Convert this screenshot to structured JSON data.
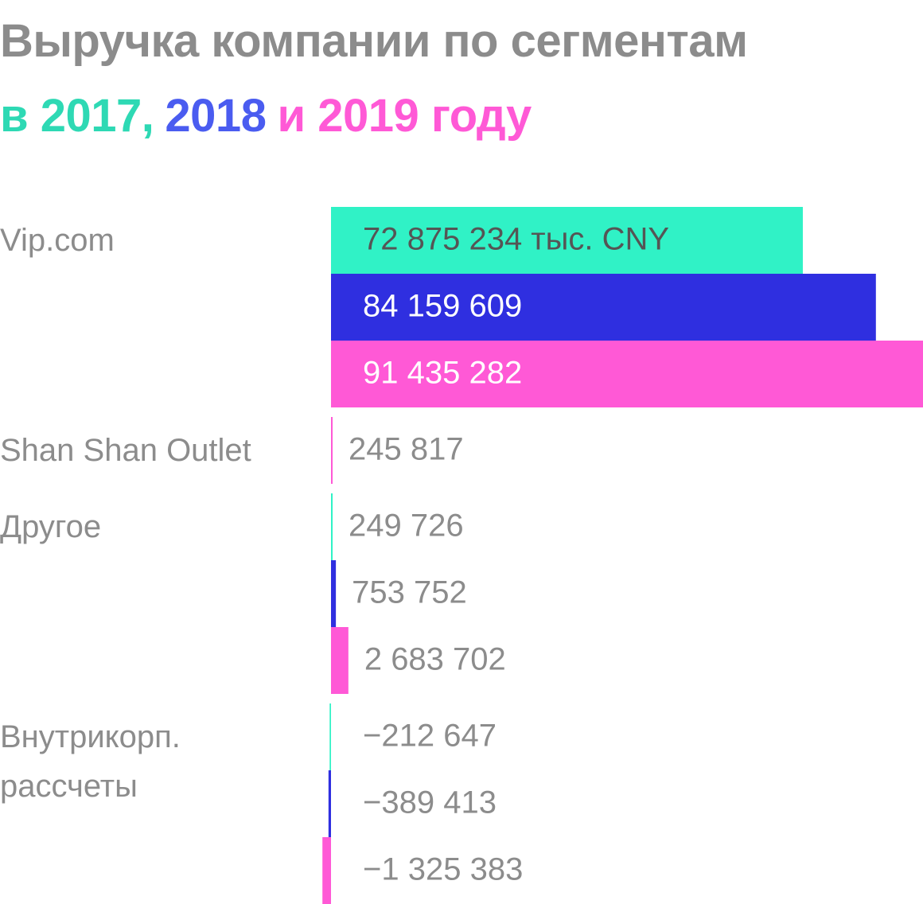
{
  "chart_data": {
    "type": "bar",
    "orientation": "horizontal",
    "title": "Выручка компании по сегментам",
    "subtitle": [
      {
        "text": "в 2017,",
        "color": "#2ed9b4"
      },
      {
        "text": "2018",
        "color": "#4a5cf0"
      },
      {
        "text": "и 2019 году",
        "color": "#ff59d6"
      }
    ],
    "categories": [
      "Vip.com",
      "Shan Shan Outlet",
      "Другое",
      "Внутрикорп. рассчеты"
    ],
    "series": [
      {
        "color": "#30f2c6",
        "values": [
          72875234,
          null,
          249726,
          -212647
        ],
        "value_labels": [
          "72 875 234 тыс. CNY",
          null,
          "249 726",
          "−212 647"
        ]
      },
      {
        "color": "#2f2fe0",
        "values": [
          84159609,
          null,
          753752,
          -389413
        ],
        "value_labels": [
          "84 159 609",
          null,
          "753 752",
          "−389 413"
        ]
      },
      {
        "color": "#ff59d6",
        "values": [
          91435282,
          245817,
          2683702,
          -1325383
        ],
        "value_labels": [
          "91 435 282",
          "245 817",
          "2 683 702",
          "−1 325 383"
        ]
      }
    ]
  }
}
